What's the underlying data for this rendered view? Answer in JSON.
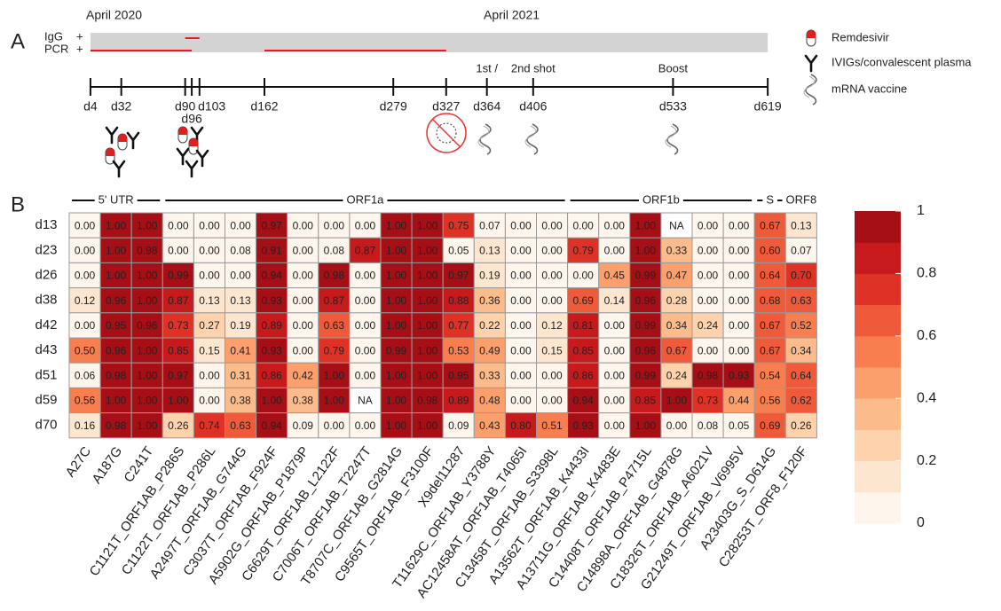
{
  "panels": {
    "a": "A",
    "b": "B"
  },
  "timeline": {
    "year_labels": [
      "April 2020",
      "April 2021"
    ],
    "rows": [
      {
        "label": "IgG",
        "sign": "+",
        "intervals": [
          [
            90,
            103
          ]
        ]
      },
      {
        "label": "PCR",
        "sign": "+",
        "intervals": [
          [
            4,
            96
          ],
          [
            162,
            327
          ]
        ]
      }
    ],
    "days": [
      {
        "value": 4,
        "label": "d4"
      },
      {
        "value": 32,
        "label": "d32"
      },
      {
        "value": 90,
        "label": "d90"
      },
      {
        "value": 96,
        "label": "d96"
      },
      {
        "value": 103,
        "label": "d103"
      },
      {
        "value": 162,
        "label": "d162"
      },
      {
        "value": 279,
        "label": "d279"
      },
      {
        "value": 327,
        "label": "d327"
      },
      {
        "value": 364,
        "label": "d364"
      },
      {
        "value": 406,
        "label": "d406"
      },
      {
        "value": 533,
        "label": "d533"
      },
      {
        "value": 619,
        "label": "d619"
      }
    ],
    "events": [
      {
        "label": "1st /",
        "day": 364
      },
      {
        "label": "2nd shot",
        "day": 406
      },
      {
        "label": "Boost",
        "day": 533
      }
    ],
    "legend": [
      "Remdesivir",
      "IVIGs/convalescent plasma",
      "mRNA vaccine"
    ]
  },
  "chart_data": {
    "type": "heatmap",
    "rows": [
      "d13",
      "d23",
      "d26",
      "d38",
      "d42",
      "d43",
      "d51",
      "d59",
      "d70"
    ],
    "columns": [
      "A27C",
      "A187G",
      "C241T",
      "C1121T_ORF1AB_P286S",
      "C1122T_ORF1AB_P286L",
      "A2497T_ORF1AB_G744G",
      "C3037T_ORF1AB_F924F",
      "A5902G_ORF1AB_P1879P",
      "C6629T_ORF1AB_L2122F",
      "C7006T_ORF1AB_T2247T",
      "T8707C_ORF1AB_G2814G",
      "C9565T_ORF1AB_F3100F",
      "X9del11287",
      "T11629C_ORF1AB_Y3788Y",
      "AC12458AT_ORF1AB_T4065I",
      "C13458T_ORF1AB_S3398L",
      "A13562T_ORF1AB_K4433I",
      "A13711G_ORF1AB_K4483E",
      "C14408T_ORF1AB_P4715L",
      "C14898A_ORF1AB_G4878G",
      "C18326T_ORF1AB_A6021V",
      "G21249T_ORF1AB_V6995V",
      "A23403G_S_D614G",
      "C28253T_ORF8_F120F"
    ],
    "values": [
      [
        0,
        1,
        1,
        0,
        0,
        0,
        0.97,
        0,
        0,
        0,
        1,
        1,
        0.75,
        0.07,
        0,
        0,
        0,
        0,
        1,
        null,
        0,
        0,
        0.67,
        0.13
      ],
      [
        0,
        1,
        0.98,
        0,
        0,
        0.08,
        0.91,
        0,
        0.08,
        0.87,
        1,
        1,
        0.05,
        0.13,
        0,
        0,
        0.79,
        0,
        1,
        0.33,
        0,
        0,
        0.6,
        0.07
      ],
      [
        0,
        1,
        1,
        0.99,
        0,
        0,
        0.94,
        0,
        0.98,
        0,
        1,
        1,
        0.97,
        0.19,
        0,
        0,
        0,
        0.45,
        0.99,
        0.47,
        0,
        0,
        0.64,
        0.7
      ],
      [
        0.12,
        0.96,
        1,
        0.87,
        0.13,
        0.13,
        0.93,
        0,
        0.87,
        0,
        1,
        1,
        0.88,
        0.36,
        0,
        0,
        0.69,
        0.14,
        0.96,
        0.28,
        0,
        0,
        0.68,
        0.63
      ],
      [
        0,
        0.95,
        0.96,
        0.73,
        0.27,
        0.19,
        0.89,
        0,
        0.63,
        0,
        1,
        1,
        0.77,
        0.22,
        0,
        0.12,
        0.81,
        0,
        0.99,
        0.34,
        0.24,
        0,
        0.67,
        0.52
      ],
      [
        0.5,
        0.96,
        1,
        0.85,
        0.15,
        0.41,
        0.93,
        0,
        0.79,
        0,
        0.99,
        1,
        0.53,
        0.49,
        0,
        0.15,
        0.85,
        0,
        0.96,
        0.67,
        0,
        0,
        0.67,
        0.34
      ],
      [
        0.06,
        0.98,
        1,
        0.97,
        0,
        0.31,
        0.86,
        0.42,
        1,
        0,
        1,
        1,
        0.95,
        0.33,
        0,
        0,
        0.86,
        0,
        0.99,
        0.24,
        0.98,
        0.93,
        0.54,
        0.64
      ],
      [
        0.56,
        1,
        1,
        1,
        0,
        0.38,
        1,
        0.38,
        1,
        null,
        1,
        0.98,
        0.89,
        0.48,
        0,
        0,
        0.94,
        0,
        0.85,
        1,
        0.73,
        0.44,
        0.56,
        0.62
      ],
      [
        0.16,
        0.98,
        1,
        0.26,
        0.74,
        0.63,
        0.94,
        0.09,
        0,
        0,
        1,
        1,
        0.09,
        0.43,
        0.8,
        0.51,
        0.93,
        0,
        1,
        0,
        0.08,
        0.05,
        0.69,
        0.26
      ]
    ],
    "value_labels": [
      [
        "0.00",
        "1.00",
        "1.00",
        "0.00",
        "0.00",
        "0.00",
        "0.97",
        "0.00",
        "0.00",
        "0.00",
        "1.00",
        "1.00",
        "0.75",
        "0.07",
        "0.00",
        "0.00",
        "0.00",
        "0.00",
        "1.00",
        "NA",
        "0.00",
        "0.00",
        "0.67",
        "0.13"
      ],
      [
        "0.00",
        "1.00",
        "0.98",
        "0.00",
        "0.00",
        "0.08",
        "0.91",
        "0.00",
        "0.08",
        "0.87",
        "1.00",
        "1.00",
        "0.05",
        "0.13",
        "0.00",
        "0.00",
        "0.79",
        "0.00",
        "1.00",
        "0.33",
        "0.00",
        "0.00",
        "0.60",
        "0.07"
      ],
      [
        "0.00",
        "1.00",
        "1.00",
        "0.99",
        "0.00",
        "0.00",
        "0.94",
        "0.00",
        "0.98",
        "0.00",
        "1.00",
        "1.00",
        "0.97",
        "0.19",
        "0.00",
        "0.00",
        "0.00",
        "0.45",
        "0.99",
        "0.47",
        "0.00",
        "0.00",
        "0.64",
        "0.70"
      ],
      [
        "0.12",
        "0.96",
        "1.00",
        "0.87",
        "0.13",
        "0.13",
        "0.93",
        "0.00",
        "0.87",
        "0.00",
        "1.00",
        "1.00",
        "0.88",
        "0.36",
        "0.00",
        "0.00",
        "0.69",
        "0.14",
        "0.96",
        "0.28",
        "0.00",
        "0.00",
        "0.68",
        "0.63"
      ],
      [
        "0.00",
        "0.95",
        "0.96",
        "0.73",
        "0.27",
        "0.19",
        "0.89",
        "0.00",
        "0.63",
        "0.00",
        "1.00",
        "1.00",
        "0.77",
        "0.22",
        "0.00",
        "0.12",
        "0.81",
        "0.00",
        "0.99",
        "0.34",
        "0.24",
        "0.00",
        "0.67",
        "0.52"
      ],
      [
        "0.50",
        "0.96",
        "1.00",
        "0.85",
        "0.15",
        "0.41",
        "0.93",
        "0.00",
        "0.79",
        "0.00",
        "0.99",
        "1.00",
        "0.53",
        "0.49",
        "0.00",
        "0.15",
        "0.85",
        "0.00",
        "0.96",
        "0.67",
        "0.00",
        "0.00",
        "0.67",
        "0.34"
      ],
      [
        "0.06",
        "0.98",
        "1.00",
        "0.97",
        "0.00",
        "0.31",
        "0.86",
        "0.42",
        "1.00",
        "0.00",
        "1.00",
        "1.00",
        "0.95",
        "0.33",
        "0.00",
        "0.00",
        "0.86",
        "0.00",
        "0.99",
        "0.24",
        "0.98",
        "0.93",
        "0.54",
        "0.64"
      ],
      [
        "0.56",
        "1.00",
        "1.00",
        "1.00",
        "0.00",
        "0.38",
        "1.00",
        "0.38",
        "1.00",
        "NA",
        "1.00",
        "0.98",
        "0.89",
        "0.48",
        "0.00",
        "0.00",
        "0.94",
        "0.00",
        "0.85",
        "1.00",
        "0.73",
        "0.44",
        "0.56",
        "0.62"
      ],
      [
        "0.16",
        "0.98",
        "1.00",
        "0.26",
        "0.74",
        "0.63",
        "0.94",
        "0.09",
        "0.00",
        "0.00",
        "1.00",
        "1.00",
        "0.09",
        "0.43",
        "0.80",
        "0.51",
        "0.93",
        "0.00",
        "1.00",
        "0.00",
        "0.08",
        "0.05",
        "0.69",
        "0.26"
      ]
    ],
    "regions": [
      "5' UTR",
      "ORF1a",
      "ORF1b",
      "S",
      "ORF8"
    ],
    "colors": [
      "#fef5ec",
      "#fde6cf",
      "#fdd2ac",
      "#fcbb8b",
      "#fb9f6c",
      "#f87e50",
      "#ef5a3a",
      "#de3227",
      "#c61a1c",
      "#a50f15"
    ],
    "colorbar": {
      "lim": [
        0,
        1
      ],
      "ticks": [
        0,
        0.2,
        0.4,
        0.6,
        0.8,
        1
      ]
    }
  }
}
